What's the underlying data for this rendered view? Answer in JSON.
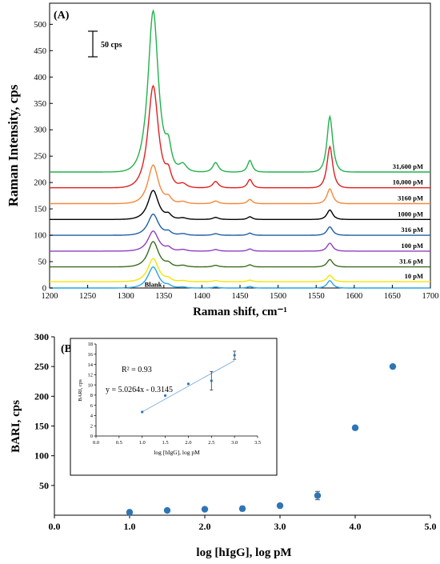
{
  "chart_data": [
    {
      "type": "line",
      "panel_label": "(A)",
      "xlabel": "Raman shift, cm⁻¹",
      "ylabel": "Raman Intensity, cps",
      "xlim": [
        1200,
        1700
      ],
      "ylim": [
        0,
        540
      ],
      "x_ticks": [
        1200,
        1250,
        1300,
        1350,
        1400,
        1450,
        1500,
        1550,
        1600,
        1650,
        1700
      ],
      "y_ticks": [
        0,
        50,
        100,
        150,
        200,
        250,
        300,
        350,
        400,
        450,
        500
      ],
      "scale_bar_label": "50 cps",
      "grid": false,
      "peaks": [
        {
          "center": 1336,
          "width": 11
        },
        {
          "center": 1356,
          "width": 6
        },
        {
          "center": 1375,
          "width": 8
        },
        {
          "center": 1418,
          "width": 6
        },
        {
          "center": 1463,
          "width": 5
        },
        {
          "center": 1568,
          "width": 6
        }
      ],
      "series": [
        {
          "name": "31,600 pM",
          "color": "#22b14c",
          "baseline": 220,
          "heights": [
            305,
            40,
            15,
            18,
            22,
            105
          ]
        },
        {
          "name": "10,000 pM",
          "color": "#e02020",
          "baseline": 190,
          "heights": [
            193,
            25,
            8,
            12,
            16,
            78
          ]
        },
        {
          "name": "3160 pM",
          "color": "#f5883a",
          "baseline": 160,
          "heights": [
            73,
            10,
            4,
            5,
            8,
            28
          ]
        },
        {
          "name": "1000 pM",
          "color": "#000000",
          "baseline": 130,
          "heights": [
            55,
            8,
            3,
            4,
            5,
            18
          ]
        },
        {
          "name": "316 pM",
          "color": "#1f5fa8",
          "baseline": 100,
          "heights": [
            40,
            6,
            3,
            3,
            4,
            16
          ]
        },
        {
          "name": "100 pM",
          "color": "#8e3fbf",
          "baseline": 70,
          "heights": [
            38,
            6,
            3,
            3,
            4,
            15
          ]
        },
        {
          "name": "31.6 pM",
          "color": "#3b6b1e",
          "baseline": 40,
          "heights": [
            48,
            6,
            3,
            3,
            4,
            14
          ]
        },
        {
          "name": "10 pM",
          "color": "#f2e600",
          "baseline": 12,
          "heights": [
            44,
            5,
            2,
            2,
            3,
            12
          ]
        },
        {
          "name": "Blank",
          "color": "#2aa7e6",
          "baseline": 0,
          "heights": [
            40,
            4,
            2,
            2,
            3,
            14
          ]
        }
      ]
    },
    {
      "type": "scatter",
      "panel_label": "(B)",
      "xlabel": "log [hIgG], log pM",
      "ylabel": "BARI, cps",
      "xlim": [
        0,
        5
      ],
      "ylim": [
        0,
        300
      ],
      "x_ticks": [
        "0.0",
        "1.0",
        "2.0",
        "3.0",
        "4.0",
        "5.0"
      ],
      "y_ticks": [
        "50",
        "100",
        "150",
        "200",
        "250",
        "300"
      ],
      "marker_color": "#2e75b6",
      "points": [
        {
          "x": 1.0,
          "y": 5,
          "err": 0
        },
        {
          "x": 1.5,
          "y": 8,
          "err": 0
        },
        {
          "x": 2.0,
          "y": 10,
          "err": 0
        },
        {
          "x": 2.5,
          "y": 11,
          "err": 4
        },
        {
          "x": 3.0,
          "y": 16,
          "err": 0
        },
        {
          "x": 3.5,
          "y": 33,
          "err": 7
        },
        {
          "x": 4.0,
          "y": 147,
          "err": 0
        },
        {
          "x": 4.5,
          "y": 250,
          "err": 0
        }
      ]
    },
    {
      "type": "scatter",
      "role": "inset",
      "xlabel": "log [hIgG],  log pM",
      "ylabel": "BARI, cps",
      "xlim": [
        0,
        3.5
      ],
      "ylim": [
        0,
        18
      ],
      "x_ticks": [
        "0.0",
        "0.5",
        "1.0",
        "1.5",
        "2.0",
        "2.5",
        "3.0",
        "3.5"
      ],
      "y_ticks": [
        "0",
        "2",
        "4",
        "6",
        "8",
        "10",
        "12",
        "14",
        "16",
        "18"
      ],
      "r2_label": "R² = 0.93",
      "equation_label": "y = 5.0264x - 0.3145",
      "fit": {
        "slope": 5.0264,
        "intercept": -0.3145,
        "x_range": [
          1.0,
          3.0
        ]
      },
      "points": [
        {
          "x": 1.0,
          "y": 4.7,
          "err": 0
        },
        {
          "x": 1.5,
          "y": 7.9,
          "err": 0
        },
        {
          "x": 2.0,
          "y": 10.2,
          "err": 0
        },
        {
          "x": 2.5,
          "y": 10.8,
          "err": 1.8
        },
        {
          "x": 3.0,
          "y": 15.8,
          "err": 0.8
        }
      ]
    }
  ]
}
